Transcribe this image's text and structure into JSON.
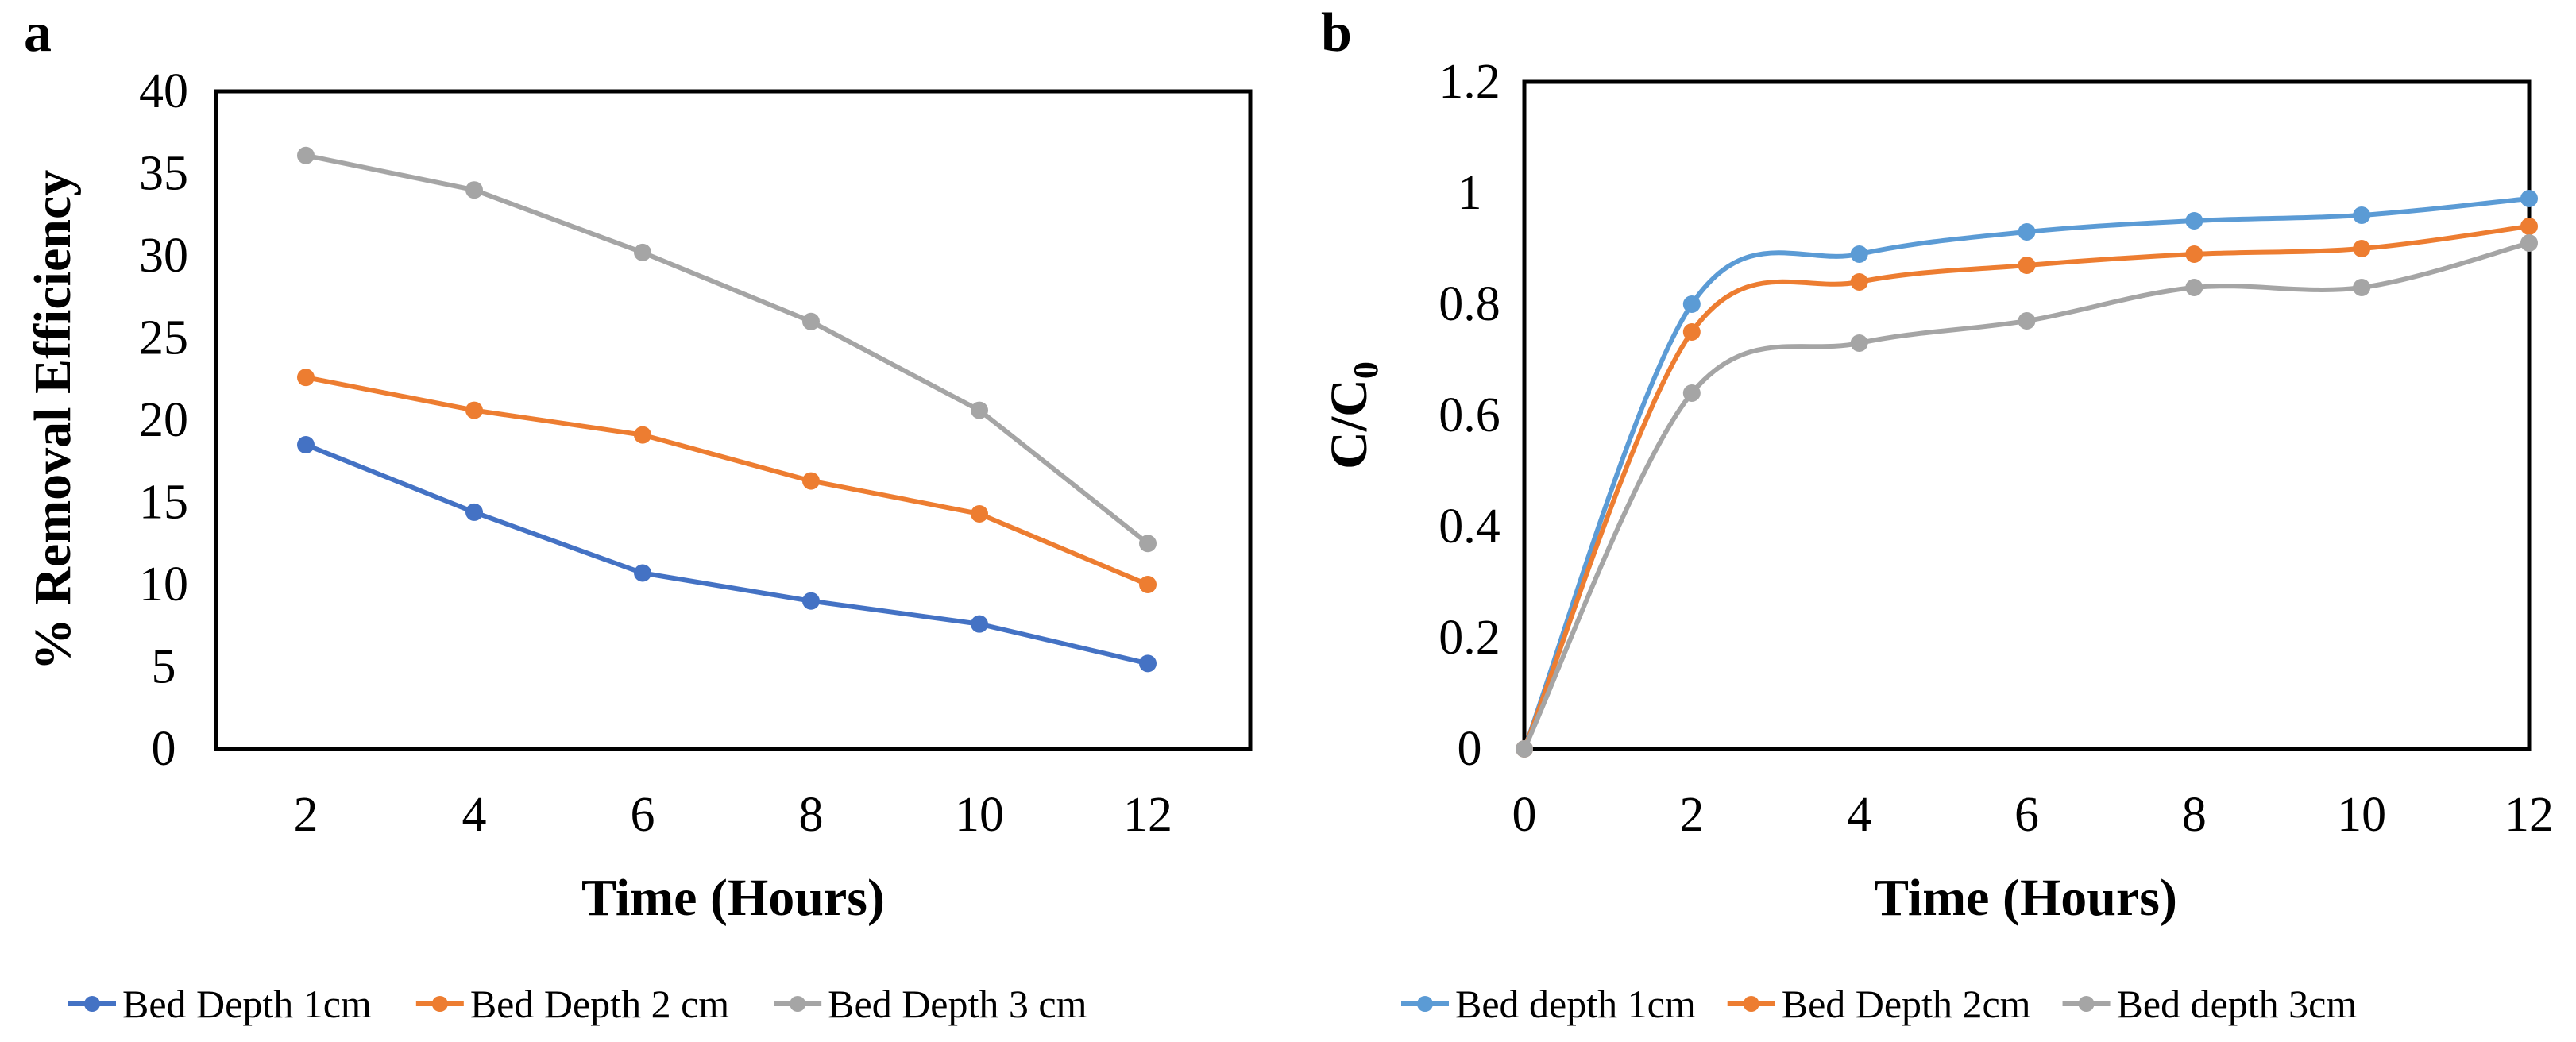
{
  "chart_data": [
    {
      "panel_label": "a",
      "type": "line",
      "title": "",
      "xlabel": "Time (Hours)",
      "ylabel": "% Removal Efficiency",
      "x": [
        2,
        4,
        6,
        8,
        10,
        12
      ],
      "x_tick_labels": [
        "2",
        "4",
        "6",
        "8",
        "10",
        "12"
      ],
      "ylim": [
        0,
        40
      ],
      "y_ticks": [
        0,
        5,
        10,
        15,
        20,
        25,
        30,
        35,
        40
      ],
      "y_tick_labels": [
        "0",
        "5",
        "10",
        "15",
        "20",
        "25",
        "30",
        "35",
        "40"
      ],
      "smooth": false,
      "grid": false,
      "legend_position": "bottom",
      "series": [
        {
          "name": "Bed Depth 1cm",
          "color": "#4472C4",
          "values": [
            18.5,
            14.4,
            10.7,
            9.0,
            7.6,
            5.2
          ]
        },
        {
          "name": "Bed Depth 2 cm",
          "color": "#ED7D31",
          "values": [
            22.6,
            20.6,
            19.1,
            16.3,
            14.3,
            10.0
          ]
        },
        {
          "name": "Bed Depth 3 cm",
          "color": "#A5A5A5",
          "values": [
            36.1,
            34.0,
            30.2,
            26.0,
            20.6,
            12.5
          ]
        }
      ]
    },
    {
      "panel_label": "b",
      "type": "line",
      "title": "",
      "xlabel": "Time (Hours)",
      "ylabel_main": "C/C",
      "ylabel_sub": "0",
      "x": [
        0,
        2,
        4,
        6,
        8,
        10,
        12
      ],
      "x_tick_labels": [
        "0",
        "2",
        "4",
        "6",
        "8",
        "10",
        "12"
      ],
      "xlim": [
        0,
        12
      ],
      "ylim": [
        0,
        1.2
      ],
      "y_ticks": [
        0,
        0.2,
        0.4,
        0.6,
        0.8,
        1.0,
        1.2
      ],
      "y_tick_labels": [
        "0",
        "0.2",
        "0.4",
        "0.6",
        "0.8",
        "1",
        "1.2"
      ],
      "smooth": true,
      "grid": false,
      "legend_position": "bottom",
      "series": [
        {
          "name": "Bed depth 1cm",
          "color": "#5B9BD5",
          "values": [
            0,
            0.8,
            0.89,
            0.93,
            0.95,
            0.96,
            0.99
          ]
        },
        {
          "name": "Bed Depth 2cm",
          "color": "#ED7D31",
          "values": [
            0,
            0.75,
            0.84,
            0.87,
            0.89,
            0.9,
            0.94
          ]
        },
        {
          "name": "Bed depth 3cm",
          "color": "#A5A5A5",
          "values": [
            0,
            0.64,
            0.73,
            0.77,
            0.83,
            0.83,
            0.91
          ]
        }
      ]
    }
  ]
}
